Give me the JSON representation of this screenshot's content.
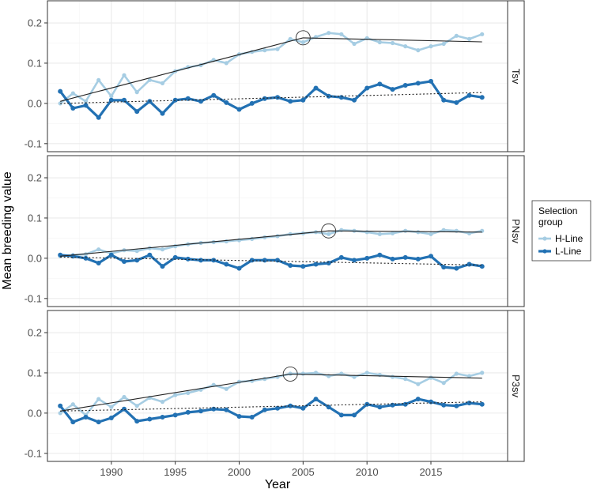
{
  "chart_data": {
    "type": "line",
    "xlabel": "Year",
    "ylabel": "Mean breeding value",
    "xlim": [
      1985,
      2021
    ],
    "ylim": [
      -0.12,
      0.255
    ],
    "x_ticks": [
      1990,
      1995,
      2000,
      2005,
      2010,
      2015
    ],
    "y_ticks": [
      -0.1,
      0.0,
      0.1,
      0.2
    ],
    "y_tick_labels": [
      "-0.1",
      "0.0",
      "0.1",
      "0.2"
    ],
    "legend": {
      "title_lines": [
        "Selection",
        "group"
      ],
      "placement": "right",
      "entries": [
        "H-Line",
        "L-Line"
      ]
    },
    "colors": {
      "H-Line": "#a6cde3",
      "L-Line": "#2271b3",
      "trend": "#222222",
      "grid": "#ebebeb"
    },
    "years": [
      1986,
      1987,
      1988,
      1989,
      1990,
      1991,
      1992,
      1993,
      1994,
      1995,
      1996,
      1997,
      1998,
      1999,
      2000,
      2001,
      2002,
      2003,
      2004,
      2005,
      2006,
      2007,
      2008,
      2009,
      2010,
      2011,
      2012,
      2013,
      2014,
      2015,
      2016,
      2017,
      2018,
      2019
    ],
    "panels": [
      {
        "strip": "Tsv",
        "series": [
          {
            "name": "H-Line",
            "values": [
              0.0,
              0.025,
              0.005,
              0.058,
              0.018,
              0.07,
              0.028,
              0.058,
              0.05,
              0.08,
              0.09,
              0.095,
              0.108,
              0.1,
              0.122,
              0.128,
              0.132,
              0.135,
              0.16,
              0.152,
              0.165,
              0.175,
              0.172,
              0.148,
              0.162,
              0.152,
              0.15,
              0.142,
              0.132,
              0.142,
              0.148,
              0.168,
              0.16,
              0.172
            ]
          },
          {
            "name": "L-Line",
            "values": [
              0.03,
              -0.012,
              -0.005,
              -0.035,
              0.008,
              0.008,
              -0.02,
              0.005,
              -0.025,
              0.008,
              0.012,
              0.005,
              0.02,
              0.002,
              -0.015,
              0.0,
              0.012,
              0.015,
              0.005,
              0.008,
              0.038,
              0.018,
              0.015,
              0.008,
              0.038,
              0.048,
              0.035,
              0.045,
              0.05,
              0.055,
              0.008,
              0.002,
              0.02,
              0.015
            ]
          }
        ],
        "trend_h": [
          [
            1986,
            0.005
          ],
          [
            2005,
            0.163
          ],
          [
            2019,
            0.153
          ]
        ],
        "trend_l": [
          [
            1986,
            0.0
          ],
          [
            2019,
            0.027
          ]
        ],
        "breakpoint": [
          2005,
          0.163
        ]
      },
      {
        "strip": "PNsv",
        "series": [
          {
            "name": "H-Line",
            "values": [
              0.005,
              0.008,
              0.01,
              0.022,
              0.012,
              0.02,
              0.018,
              0.025,
              0.022,
              0.03,
              0.035,
              0.038,
              0.04,
              0.042,
              0.045,
              0.048,
              0.052,
              0.055,
              0.06,
              0.062,
              0.065,
              0.06,
              0.07,
              0.068,
              0.065,
              0.06,
              0.062,
              0.068,
              0.065,
              0.06,
              0.07,
              0.068,
              0.062,
              0.068
            ]
          },
          {
            "name": "L-Line",
            "values": [
              0.008,
              0.005,
              0.0,
              -0.012,
              0.008,
              -0.008,
              -0.005,
              0.008,
              -0.02,
              0.002,
              -0.002,
              -0.005,
              -0.005,
              -0.015,
              -0.025,
              -0.005,
              -0.005,
              -0.005,
              -0.018,
              -0.02,
              -0.015,
              -0.012,
              0.002,
              -0.005,
              0.0,
              0.008,
              -0.002,
              0.002,
              -0.002,
              0.005,
              -0.022,
              -0.025,
              -0.015,
              -0.02
            ]
          }
        ],
        "trend_h": [
          [
            1986,
            0.005
          ],
          [
            2007,
            0.068
          ],
          [
            2019,
            0.065
          ]
        ],
        "trend_l": [
          [
            1986,
            0.003
          ],
          [
            2019,
            -0.017
          ]
        ],
        "breakpoint": [
          2007,
          0.068
        ]
      },
      {
        "strip": "P3sv",
        "series": [
          {
            "name": "H-Line",
            "values": [
              0.0,
              0.022,
              -0.005,
              0.035,
              0.015,
              0.04,
              0.018,
              0.038,
              0.028,
              0.045,
              0.05,
              0.058,
              0.07,
              0.06,
              0.078,
              0.08,
              0.085,
              0.09,
              0.098,
              0.098,
              0.1,
              0.092,
              0.098,
              0.09,
              0.1,
              0.095,
              0.09,
              0.085,
              0.072,
              0.088,
              0.075,
              0.098,
              0.092,
              0.1
            ]
          },
          {
            "name": "L-Line",
            "values": [
              0.018,
              -0.022,
              -0.01,
              -0.022,
              -0.012,
              0.01,
              -0.02,
              -0.015,
              -0.01,
              -0.005,
              0.002,
              0.005,
              0.01,
              0.008,
              -0.008,
              -0.01,
              0.008,
              0.012,
              0.018,
              0.012,
              0.035,
              0.015,
              -0.005,
              -0.005,
              0.022,
              0.015,
              0.02,
              0.022,
              0.035,
              0.028,
              0.02,
              0.018,
              0.025,
              0.022
            ]
          }
        ],
        "trend_h": [
          [
            1986,
            0.005
          ],
          [
            2004,
            0.097
          ],
          [
            2019,
            0.087
          ]
        ],
        "trend_l": [
          [
            1986,
            0.005
          ],
          [
            2019,
            0.028
          ]
        ],
        "breakpoint": [
          2004,
          0.097
        ]
      }
    ]
  }
}
